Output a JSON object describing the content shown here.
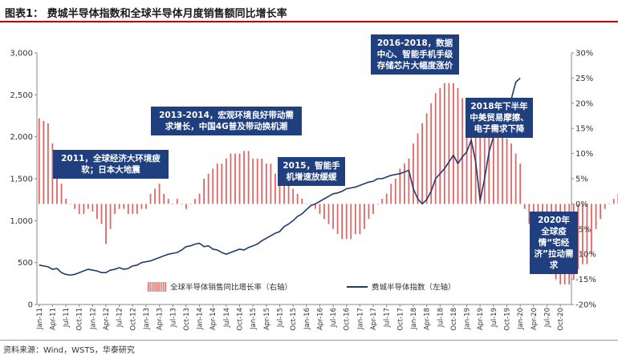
{
  "figure": {
    "title": "图表1： 费城半导体指数和全球半导体月度销售额同比增长率",
    "source": "资料来源：Wind，WSTS，华泰研究"
  },
  "annotations": [
    {
      "id": "ann-2011",
      "text": "2011，全球经济大环境疲软；日本大地震"
    },
    {
      "id": "ann-2013",
      "text": "2013-2014，宏观环境良好带动需求增长，中国4G普及带动换机潮"
    },
    {
      "id": "ann-2015",
      "text": "2015，智能手机增速放缓缓"
    },
    {
      "id": "ann-2016",
      "text": "2016-2018，数据中心、智能手机手级存储芯片大幅度涨价"
    },
    {
      "id": "ann-2018",
      "text": "2018年下半年中美贸易摩擦、电子需求下降"
    },
    {
      "id": "ann-2020",
      "text": "2020年全球疫情“宅经济”拉动需求"
    }
  ],
  "chart_data": {
    "type": "bar+line",
    "x_tick_labels": [
      "Jan-11",
      "Apr-11",
      "Jul-11",
      "Oct-11",
      "Jan-12",
      "Apr-12",
      "Jul-12",
      "Oct-12",
      "Jan-13",
      "Apr-13",
      "Jul-13",
      "Oct-13",
      "Jan-14",
      "Apr-14",
      "Jul-14",
      "Oct-14",
      "Jan-15",
      "Apr-15",
      "Jul-15",
      "Oct-15",
      "Jan-16",
      "Apr-16",
      "Jul-16",
      "Oct-16",
      "Jan-17",
      "Apr-17",
      "Jul-17",
      "Oct-17",
      "Jan-18",
      "Apr-18",
      "Jul-18",
      "Oct-18",
      "Jan-19",
      "Apr-19",
      "Jul-19",
      "Oct-19",
      "Jan-20",
      "Apr-20",
      "Jul-20",
      "Oct-20"
    ],
    "y_left": {
      "ticks": [
        "0",
        "500",
        "1,000",
        "1,500",
        "2,000",
        "2,500",
        "3,000"
      ],
      "min": 0,
      "max": 3000
    },
    "y_right": {
      "ticks": [
        "-20%",
        "-15%",
        "-10%",
        "-5%",
        "0%",
        "5%",
        "10%",
        "15%",
        "20%",
        "25%",
        "30%"
      ],
      "min": -20,
      "max": 30
    },
    "legend": {
      "position": "bottom-center"
    },
    "series": [
      {
        "name": "全球半导体销售同比增长率（右轴）",
        "kind": "bar",
        "axis": "right",
        "color": "#e06666",
        "start": "2011-01",
        "frequency": "monthly",
        "values": [
          17,
          16.5,
          16,
          12,
          6,
          4,
          1,
          0,
          -1,
          -2,
          -2,
          -1,
          -1.5,
          -3,
          -4,
          -8,
          -5,
          -2,
          -1,
          -1,
          -2,
          -2,
          -2,
          -1,
          -1,
          2,
          3,
          4,
          2,
          1,
          0,
          1,
          0,
          -1,
          0,
          1,
          2,
          5,
          6,
          7,
          8,
          8,
          9,
          10,
          10,
          10,
          10.5,
          10.5,
          9,
          9,
          9,
          8,
          8,
          6,
          6,
          5,
          4,
          3,
          2,
          1,
          0,
          0,
          -1,
          -2,
          -3,
          -4,
          -5,
          -6,
          -7,
          -7,
          -7,
          -6,
          -6,
          -5,
          -3,
          -2,
          0,
          1,
          2,
          4,
          5,
          7,
          8,
          9,
          12,
          14,
          16,
          18,
          20,
          22,
          23,
          24,
          24,
          24,
          23,
          21,
          21,
          21,
          20,
          20,
          18,
          16,
          16,
          15,
          14,
          13,
          12,
          10,
          8,
          -1,
          -4,
          -6,
          -10,
          -12,
          -13,
          -14,
          -15,
          -16,
          -16,
          -16,
          -15,
          -13,
          -12,
          -12,
          -10,
          -5,
          -3,
          -1,
          0,
          1,
          2,
          3,
          4,
          5,
          5,
          6,
          7,
          8
        ]
      },
      {
        "name": "费城半导体指数（左轴）",
        "kind": "line",
        "axis": "left",
        "color": "#1f3a6e",
        "start": "2011-01",
        "frequency": "monthly",
        "values": [
          470,
          460,
          450,
          420,
          430,
          380,
          360,
          350,
          360,
          380,
          400,
          420,
          410,
          400,
          380,
          380,
          410,
          420,
          440,
          420,
          430,
          460,
          470,
          500,
          510,
          520,
          540,
          560,
          580,
          600,
          610,
          620,
          650,
          690,
          700,
          720,
          730,
          690,
          700,
          660,
          650,
          620,
          600,
          620,
          640,
          660,
          650,
          680,
          700,
          720,
          760,
          790,
          820,
          850,
          870,
          930,
          960,
          1000,
          1050,
          1080,
          1130,
          1180,
          1200,
          1230,
          1260,
          1290,
          1320,
          1330,
          1350,
          1380,
          1390,
          1400,
          1420,
          1440,
          1460,
          1470,
          1500,
          1500,
          1520,
          1540,
          1550,
          1560,
          1580,
          1600,
          1380,
          1260,
          1200,
          1250,
          1350,
          1500,
          1560,
          1620,
          1700,
          1780,
          1680,
          1760,
          1820,
          1960,
          1700,
          1240,
          1500,
          1820,
          2000,
          2080,
          2200,
          2300,
          2450,
          2650,
          2700
        ]
      }
    ]
  }
}
